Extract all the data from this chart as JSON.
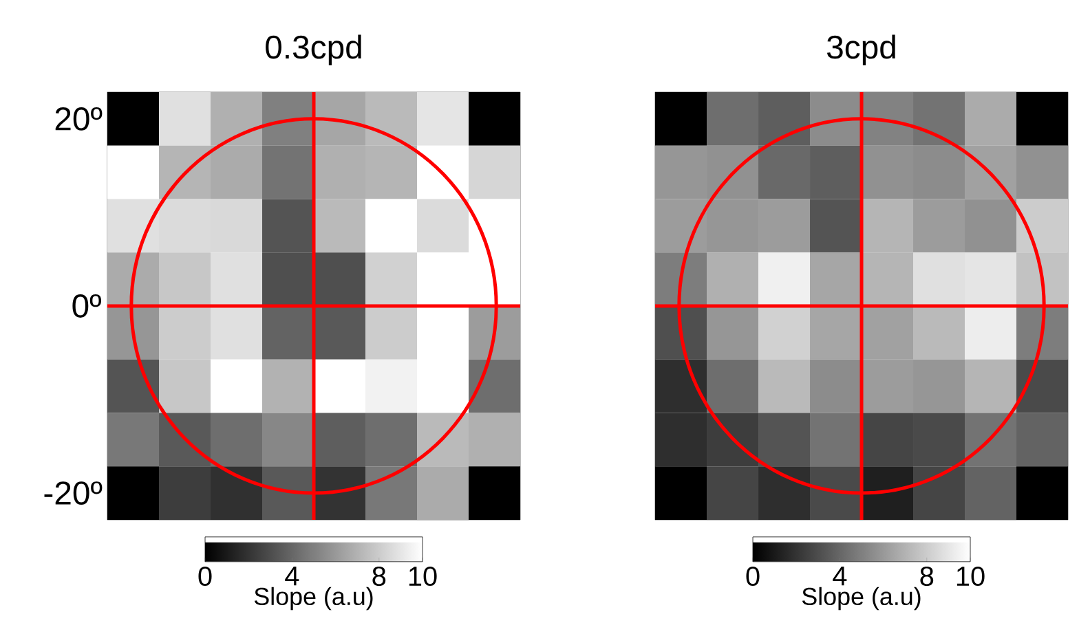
{
  "chart_data": [
    {
      "type": "heatmap",
      "title": "0.3cpd",
      "categories": [
        null,
        null,
        null,
        null,
        null,
        null,
        null,
        null
      ],
      "y_categories": [
        "20º",
        null,
        null,
        null,
        null,
        null,
        null,
        "-20º"
      ],
      "annotations": [
        "0º"
      ],
      "tick_labels": "y",
      "cells": [
        [
          0,
          8.8,
          6.9,
          5.0,
          6.5,
          7.3,
          9.0,
          0
        ],
        [
          10,
          7.1,
          6.7,
          4.5,
          6.9,
          7.1,
          10,
          8.4
        ],
        [
          8.8,
          8.6,
          8.5,
          3.3,
          7.3,
          10,
          8.6,
          10
        ],
        [
          6.7,
          7.8,
          8.8,
          3.1,
          3.1,
          8.2,
          10,
          10
        ],
        [
          5.9,
          8.0,
          8.8,
          3.9,
          3.5,
          8.0,
          10,
          6.1
        ],
        [
          3.3,
          7.8,
          10,
          7.0,
          10,
          9.5,
          10,
          4.3
        ],
        [
          4.7,
          3.5,
          4.3,
          5.3,
          3.7,
          4.3,
          7.3,
          6.9
        ],
        [
          0,
          2.4,
          1.9,
          3.5,
          2.0,
          4.7,
          6.7,
          0
        ]
      ],
      "clim": [
        0,
        10
      ],
      "cticks": [
        0,
        4,
        8,
        10
      ],
      "clabel": "Slope (a.u)"
    },
    {
      "type": "heatmap",
      "title": "3cpd",
      "categories": [
        null,
        null,
        null,
        null,
        null,
        null,
        null,
        null
      ],
      "y_categories": [
        null,
        null,
        null,
        null,
        null,
        null,
        null,
        null
      ],
      "tick_labels": false,
      "cells": [
        [
          0,
          4.3,
          3.7,
          5.5,
          5.1,
          4.5,
          6.7,
          0
        ],
        [
          5.9,
          5.7,
          4.1,
          3.7,
          5.7,
          5.5,
          6.3,
          5.7
        ],
        [
          6.1,
          5.9,
          6.1,
          3.3,
          7.1,
          6.1,
          5.7,
          8.0
        ],
        [
          4.9,
          6.9,
          9.4,
          6.5,
          7.1,
          8.8,
          9.0,
          7.6
        ],
        [
          3.1,
          5.9,
          8.2,
          6.5,
          6.3,
          7.3,
          9.3,
          4.9
        ],
        [
          1.8,
          4.3,
          7.3,
          5.5,
          6.1,
          5.9,
          7.1,
          2.9
        ],
        [
          1.8,
          2.4,
          3.3,
          4.5,
          2.7,
          2.9,
          4.5,
          3.9
        ],
        [
          0,
          2.7,
          1.8,
          2.9,
          1.2,
          2.7,
          3.9,
          0
        ]
      ],
      "clim": [
        0,
        10
      ],
      "cticks": [
        0,
        4,
        8,
        10
      ],
      "clabel": "Slope (a.u)"
    }
  ]
}
